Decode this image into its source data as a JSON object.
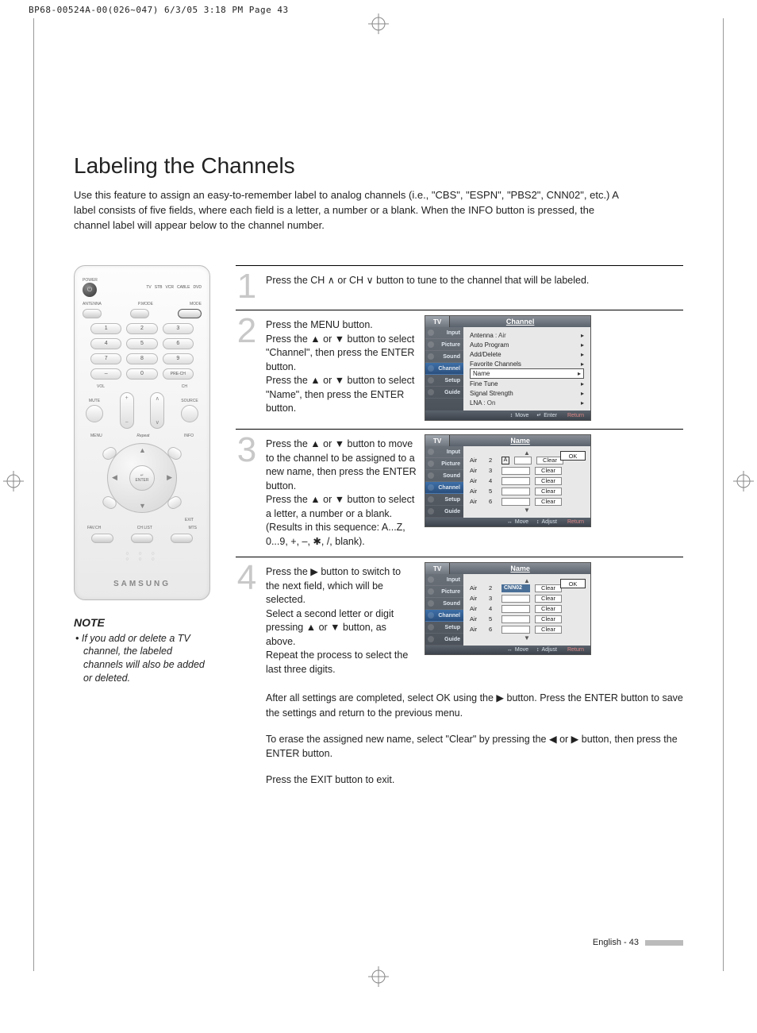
{
  "crop_header": "BP68-00524A-00(026~047)  6/3/05  3:18 PM  Page 43",
  "title": "Labeling the Channels",
  "intro": "Use this feature to assign an easy-to-remember label to analog channels (i.e., \"CBS\", \"ESPN\", \"PBS2\", CNN02\", etc.) A label consists of five fields, where each field is a letter, a number or a blank. When the INFO button is pressed, the channel label will appear below to the channel number.",
  "remote": {
    "power_label": "POWER",
    "top_modes": [
      "TV",
      "STB",
      "VCR",
      "CABLE",
      "DVD"
    ],
    "row_labels": [
      "ANTENNA",
      "P.MODE",
      "MODE"
    ],
    "numbers": [
      "1",
      "2",
      "3",
      "4",
      "5",
      "6",
      "7",
      "8",
      "9",
      "–",
      "0",
      "PRE-CH"
    ],
    "vol_label": "VOL",
    "ch_label": "CH",
    "mute": "MUTE",
    "source": "SOURCE",
    "menu": "MENU",
    "info": "INFO",
    "exit": "EXIT",
    "enter_top": "↵",
    "enter": "ENTER",
    "bottom_row": [
      "FAV.CH",
      "CH LIST",
      "MTS"
    ],
    "brand": "SAMSUNG"
  },
  "note": {
    "heading": "NOTE",
    "text": "• If you add or delete a TV channel, the labeled channels will also be added or deleted."
  },
  "steps": {
    "1": "Press the CH ∧ or CH ∨ button to tune to the channel that will be labeled.",
    "2": "Press the MENU button.\nPress the ▲ or ▼ button to select \"Channel\", then press the ENTER button.\nPress the ▲ or ▼ button to select \"Name\", then press the ENTER button.",
    "3": "Press the ▲ or ▼ button to move to the channel to be assigned to a new name, then press the ENTER button.\nPress the ▲ or ▼ button to select a letter, a number or a blank. (Results in this sequence: A...Z, 0...9, +, –, ✱, /, blank).",
    "4": "Press the ▶ button to switch to the next field, which will be selected.\nSelect a second letter or digit pressing ▲ or ▼ button, as above.\nRepeat the process to select the last three digits."
  },
  "after": {
    "p1": "After all settings are completed, select OK using the ▶ button. Press the ENTER button to save the settings and return to the previous menu.",
    "p2": "To erase the assigned new name, select \"Clear\" by pressing the ◀ or ▶ button, then press the ENTER button.",
    "p3": "Press the EXIT button to exit."
  },
  "osd_channel": {
    "tv": "TV",
    "title": "Channel",
    "side": [
      "Input",
      "Picture",
      "Sound",
      "Channel",
      "Setup",
      "Guide"
    ],
    "active_side_index": 3,
    "rows": [
      {
        "label": "Antenna",
        "value": ": Air"
      },
      {
        "label": "Auto Program",
        "value": ""
      },
      {
        "label": "Add/Delete",
        "value": ""
      },
      {
        "label": "Favorite Channels",
        "value": ""
      },
      {
        "label": "Name",
        "value": "",
        "boxed": true
      },
      {
        "label": "Fine Tune",
        "value": ""
      },
      {
        "label": "Signal Strength",
        "value": ""
      },
      {
        "label": "LNA",
        "value": ": On"
      }
    ],
    "footer": [
      {
        "icon": "↕",
        "label": "Move"
      },
      {
        "icon": "↵",
        "label": "Enter"
      },
      {
        "icon": "",
        "label": "Return",
        "ret": true
      }
    ]
  },
  "osd_name": {
    "tv": "TV",
    "title": "Name",
    "side": [
      "Input",
      "Picture",
      "Sound",
      "Channel",
      "Setup",
      "Guide"
    ],
    "active_side_index": 3,
    "ok": "OK",
    "channels": [
      {
        "src": "Air",
        "ch": "2"
      },
      {
        "src": "Air",
        "ch": "3"
      },
      {
        "src": "Air",
        "ch": "4"
      },
      {
        "src": "Air",
        "ch": "5"
      },
      {
        "src": "Air",
        "ch": "6"
      }
    ],
    "clear": "Clear",
    "selected_letter": "A",
    "footer": [
      {
        "icon": "↔",
        "label": "Move"
      },
      {
        "icon": "↕",
        "label": "Adjust"
      },
      {
        "icon": "",
        "label": "Return",
        "ret": true
      }
    ]
  },
  "osd_name2": {
    "filled_value": "CNN02"
  },
  "page_footer": "English - 43",
  "colors": {
    "step_num": "#c8c8c8",
    "osd_header_grad_top": "#8a8f96",
    "osd_header_grad_bot": "#5a626c",
    "osd_side_grad_top": "#6a7078",
    "osd_side_grad_bot": "#4c525a",
    "osd_side_active_top": "#3e6fa8",
    "osd_side_active_bot": "#2a4f7c",
    "osd_main_bg": "#e8e8e8",
    "footer_bar": "#bbbbbb"
  }
}
